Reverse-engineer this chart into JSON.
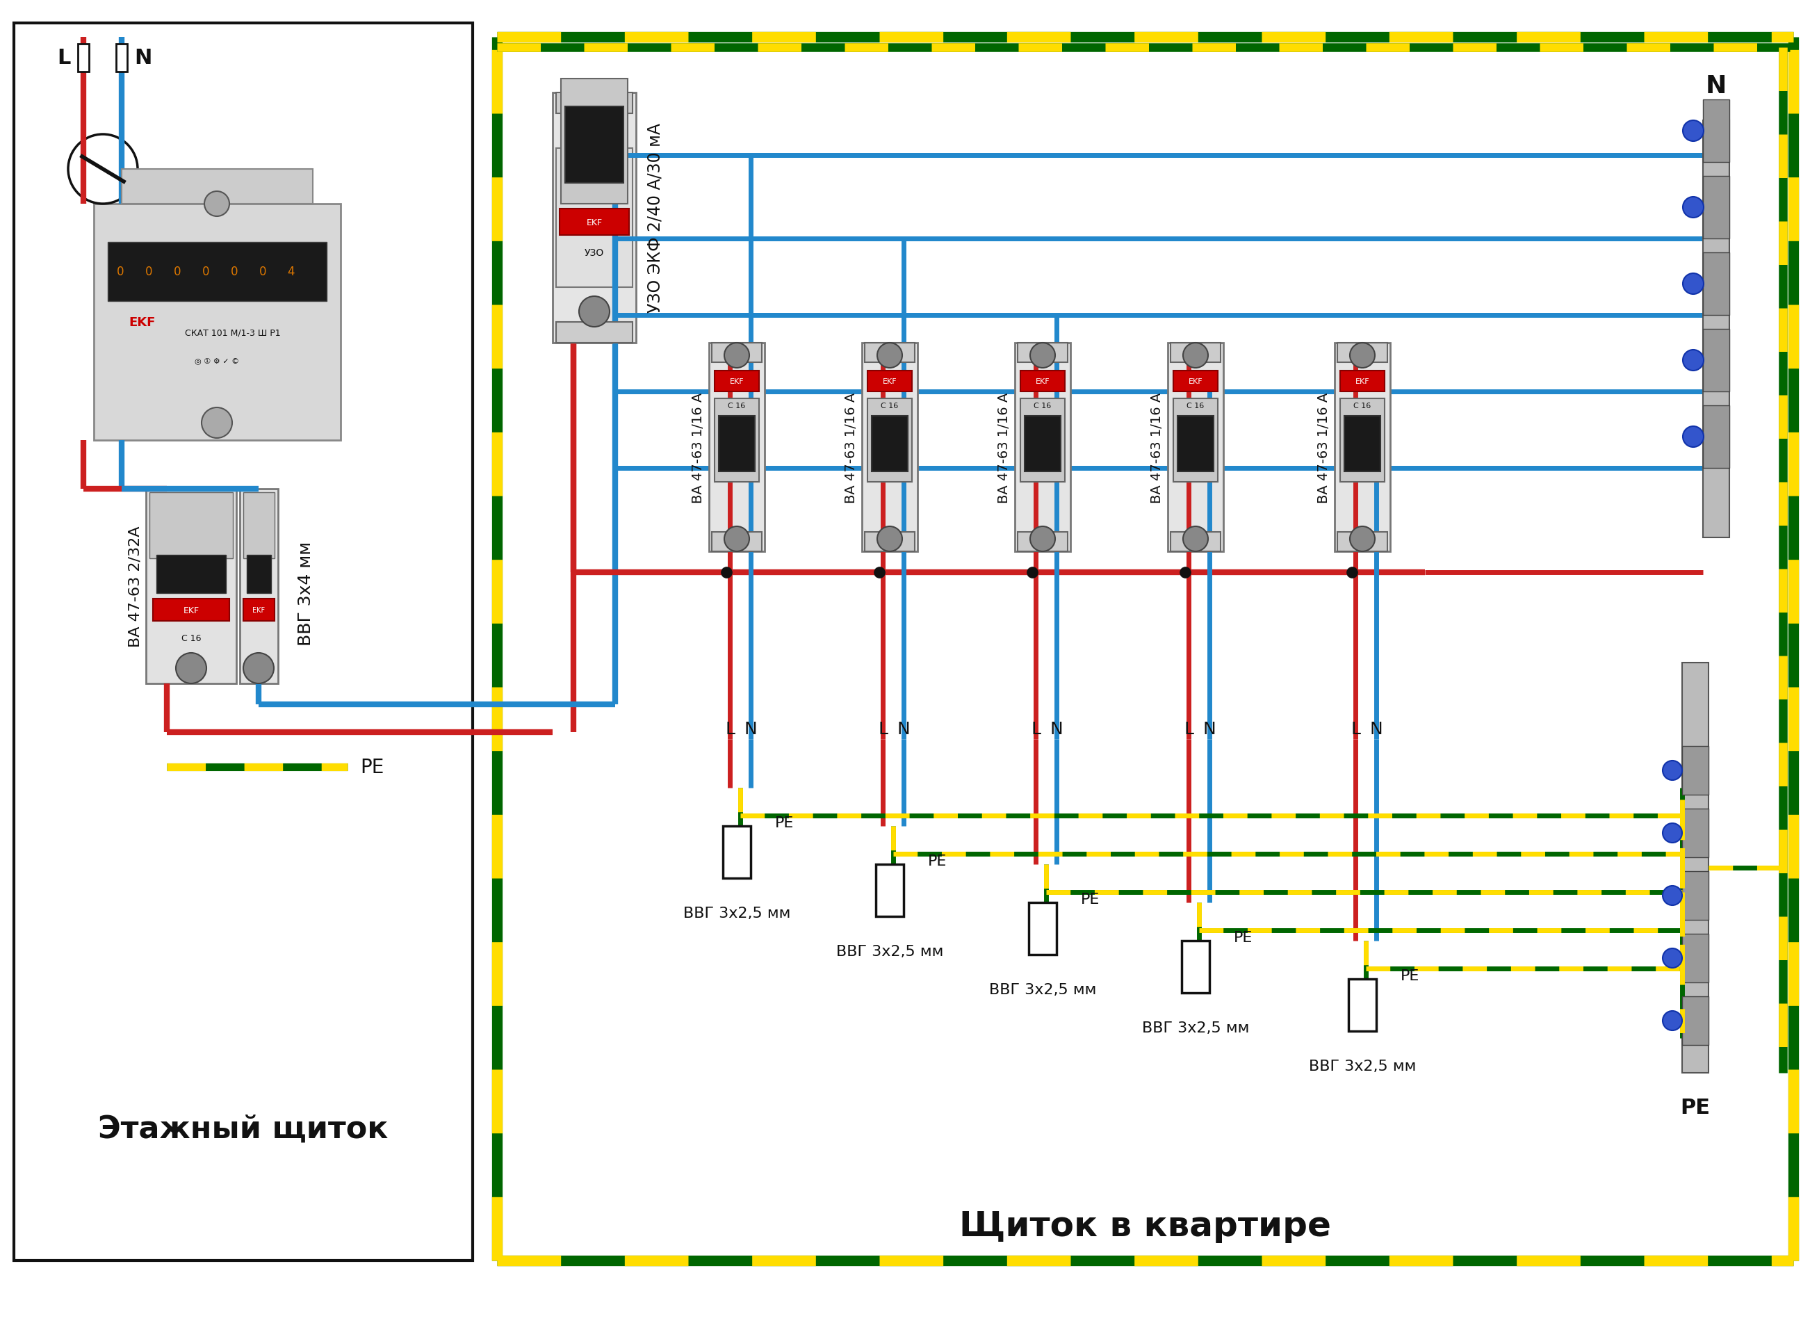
{
  "bg_color": "#ffffff",
  "RED": "#cc2020",
  "BLUE": "#2288cc",
  "GREEN_DARK": "#006600",
  "YELLOW": "#ffdd00",
  "BLACK": "#111111",
  "etazh_label": "Этажный щиток",
  "kv_label": "Щиток в квартире",
  "vvg4_label": "ВВГ 3х4 мм",
  "vvg25_label": "ВВГ 3х2,5 мм",
  "va_main_label": "ВА 47-63 2/32А",
  "uzo_label": "УЗО ЭКФ 2/40 А/30 мА",
  "va_label": "ВА 47-63 1/16 А",
  "L_label": "L",
  "N_label": "N",
  "PE_label": "PE"
}
